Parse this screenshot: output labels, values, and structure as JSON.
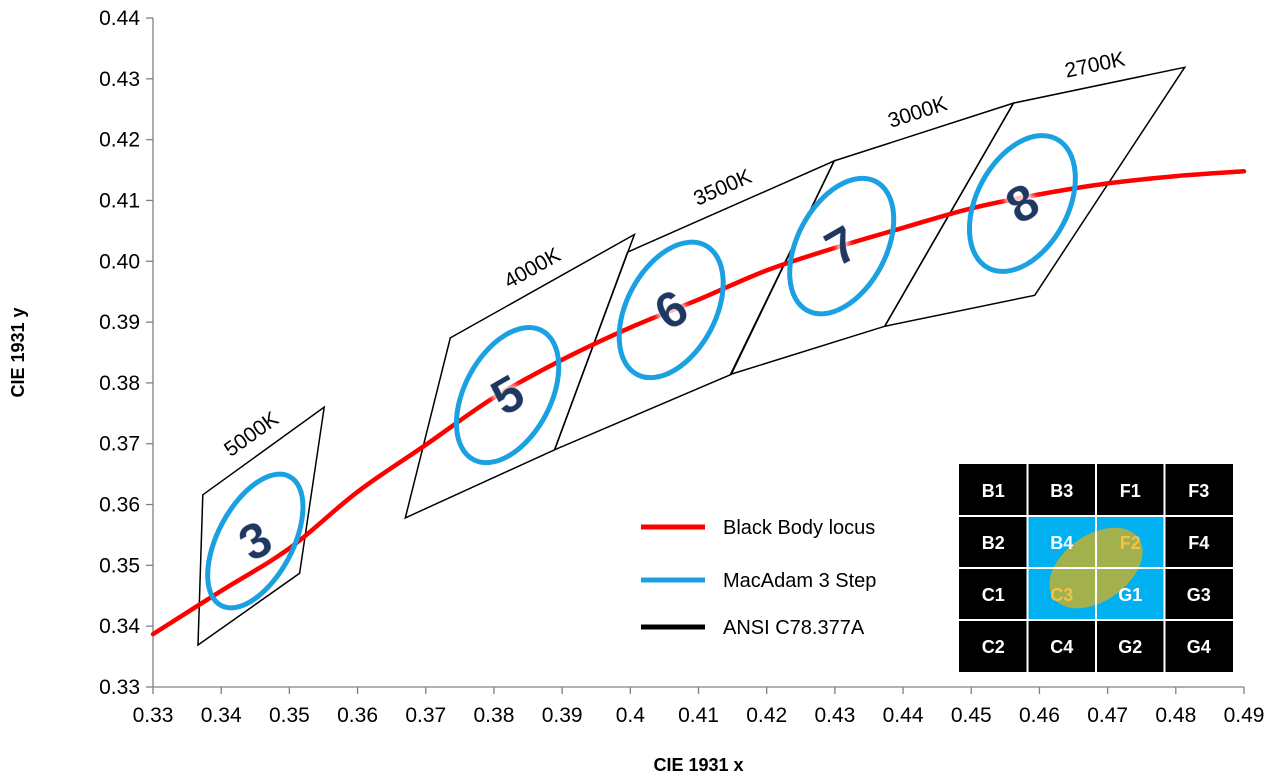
{
  "chart_data": {
    "type": "scatter",
    "xlabel": "CIE 1931 x",
    "ylabel": "CIE 1931 y",
    "xlim": [
      0.33,
      0.49
    ],
    "ylim": [
      0.33,
      0.44
    ],
    "xticks": [
      "0.33",
      "0.34",
      "0.35",
      "0.36",
      "0.37",
      "0.38",
      "0.39",
      "0.4",
      "0.41",
      "0.42",
      "0.43",
      "0.44",
      "0.45",
      "0.46",
      "0.47",
      "0.48",
      "0.49"
    ],
    "yticks": [
      "0.33",
      "0.34",
      "0.35",
      "0.36",
      "0.37",
      "0.38",
      "0.39",
      "0.40",
      "0.41",
      "0.42",
      "0.43",
      "0.44"
    ],
    "grid": false,
    "legend_position": "lower-right",
    "colors": {
      "locus": "#ff0000",
      "ellipse": "#1ba1e2",
      "quad": "#000000",
      "number": "#1f3864",
      "bin_fill": "#000000",
      "bin_highlight": "#00b0f0",
      "bin_overlay": "#b0b040"
    },
    "series": [
      {
        "name": "Black Body locus",
        "x": [
          0.33,
          0.34,
          0.35,
          0.36,
          0.37,
          0.38,
          0.39,
          0.4,
          0.41,
          0.42,
          0.43,
          0.44,
          0.45,
          0.46,
          0.47,
          0.48,
          0.49
        ],
        "y": [
          0.3387,
          0.3458,
          0.3528,
          0.3621,
          0.3698,
          0.3776,
          0.3838,
          0.3891,
          0.3937,
          0.3985,
          0.4022,
          0.4055,
          0.4087,
          0.411,
          0.4128,
          0.414,
          0.4148
        ]
      },
      {
        "name": "MacAdam 3 Step",
        "ellipses": [
          {
            "label": "3",
            "cx": 0.345,
            "cy": 0.354,
            "rx": 0.0055,
            "ry": 0.012,
            "angle": 58
          },
          {
            "label": "5",
            "cx": 0.382,
            "cy": 0.378,
            "rx": 0.0063,
            "ry": 0.012,
            "angle": 58
          },
          {
            "label": "6",
            "cx": 0.406,
            "cy": 0.392,
            "rx": 0.0065,
            "ry": 0.012,
            "angle": 58
          },
          {
            "label": "7",
            "cx": 0.431,
            "cy": 0.4025,
            "rx": 0.0065,
            "ry": 0.012,
            "angle": 58
          },
          {
            "label": "8",
            "cx": 0.4575,
            "cy": 0.4095,
            "rx": 0.0067,
            "ry": 0.012,
            "angle": 58
          }
        ]
      },
      {
        "name": "ANSI C78.377A",
        "quads": [
          {
            "label": "5000K",
            "points": [
              [
                0.3373,
                0.3616
              ],
              [
                0.3551,
                0.376
              ],
              [
                0.3515,
                0.3487
              ],
              [
                0.3366,
                0.3369
              ]
            ]
          },
          {
            "label": "4000K",
            "points": [
              [
                0.3736,
                0.3874
              ],
              [
                0.4006,
                0.4044
              ],
              [
                0.3889,
                0.369
              ],
              [
                0.367,
                0.3578
              ]
            ]
          },
          {
            "label": "3500K",
            "points": [
              [
                0.3996,
                0.4015
              ],
              [
                0.4299,
                0.4165
              ],
              [
                0.4148,
                0.3814
              ],
              [
                0.3889,
                0.369
              ]
            ]
          },
          {
            "label": "3000K",
            "points": [
              [
                0.4299,
                0.4165
              ],
              [
                0.4562,
                0.426
              ],
              [
                0.4373,
                0.3893
              ],
              [
                0.4147,
                0.3814
              ]
            ]
          },
          {
            "label": "2700K",
            "points": [
              [
                0.4562,
                0.426
              ],
              [
                0.4813,
                0.4319
              ],
              [
                0.4593,
                0.3944
              ],
              [
                0.4373,
                0.3893
              ]
            ]
          }
        ]
      }
    ],
    "bin_table": {
      "rows": [
        [
          "B1",
          "B3",
          "F1",
          "F3"
        ],
        [
          "B2",
          "B4",
          "F2",
          "F4"
        ],
        [
          "C1",
          "C3",
          "G1",
          "G3"
        ],
        [
          "C2",
          "C4",
          "G2",
          "G4"
        ]
      ],
      "highlighted": [
        "B4",
        "F2",
        "C3",
        "G1"
      ]
    }
  }
}
